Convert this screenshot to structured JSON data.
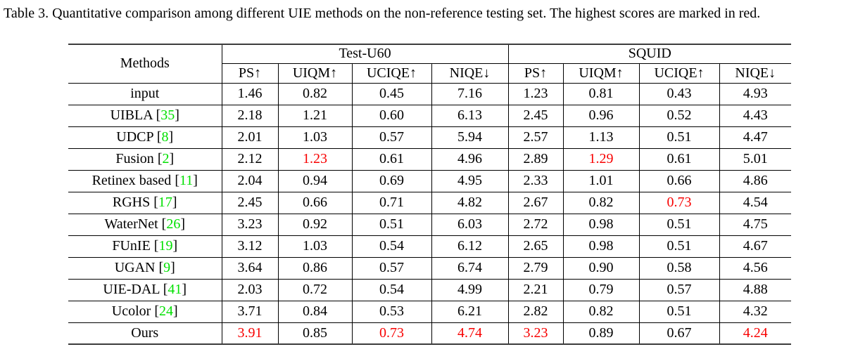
{
  "caption": "Table 3. Quantitative comparison among different UIE methods on the non-reference testing set. The highest scores are marked in red.",
  "colors": {
    "highlight_red": "#f80000",
    "citation_green": "#00e000"
  },
  "table": {
    "methods_header": "Methods",
    "groups": [
      {
        "label": "Test-U60",
        "columns": [
          "PS↑",
          "UIQM↑",
          "UCIQE↑",
          "NIQE↓"
        ]
      },
      {
        "label": "SQUID",
        "columns": [
          "PS↑",
          "UIQM↑",
          "UCIQE↑",
          "NIQE↓"
        ]
      }
    ],
    "rows": [
      {
        "method": "input",
        "cite": null,
        "values": [
          "1.46",
          "0.82",
          "0.45",
          "7.16",
          "1.23",
          "0.81",
          "0.43",
          "4.93"
        ],
        "red": []
      },
      {
        "method": "UIBLA",
        "cite": "35",
        "values": [
          "2.18",
          "1.21",
          "0.60",
          "6.13",
          "2.45",
          "0.96",
          "0.52",
          "4.43"
        ],
        "red": []
      },
      {
        "method": "UDCP",
        "cite": "8",
        "values": [
          "2.01",
          "1.03",
          "0.57",
          "5.94",
          "2.57",
          "1.13",
          "0.51",
          "4.47"
        ],
        "red": []
      },
      {
        "method": "Fusion",
        "cite": "2",
        "values": [
          "2.12",
          "1.23",
          "0.61",
          "4.96",
          "2.89",
          "1.29",
          "0.61",
          "5.01"
        ],
        "red": [
          1,
          5
        ]
      },
      {
        "method": "Retinex based",
        "cite": "11",
        "values": [
          "2.04",
          "0.94",
          "0.69",
          "4.95",
          "2.33",
          "1.01",
          "0.66",
          "4.86"
        ],
        "red": []
      },
      {
        "method": "RGHS",
        "cite": "17",
        "values": [
          "2.45",
          "0.66",
          "0.71",
          "4.82",
          "2.67",
          "0.82",
          "0.73",
          "4.54"
        ],
        "red": [
          6
        ]
      },
      {
        "method": "WaterNet",
        "cite": "26",
        "values": [
          "3.23",
          "0.92",
          "0.51",
          "6.03",
          "2.72",
          "0.98",
          "0.51",
          "4.75"
        ],
        "red": []
      },
      {
        "method": "FUnIE",
        "cite": "19",
        "values": [
          "3.12",
          "1.03",
          "0.54",
          "6.12",
          "2.65",
          "0.98",
          "0.51",
          "4.67"
        ],
        "red": []
      },
      {
        "method": "UGAN",
        "cite": "9",
        "values": [
          "3.64",
          "0.86",
          "0.57",
          "6.74",
          "2.79",
          "0.90",
          "0.58",
          "4.56"
        ],
        "red": []
      },
      {
        "method": "UIE-DAL",
        "cite": "41",
        "values": [
          "2.03",
          "0.72",
          "0.54",
          "4.99",
          "2.21",
          "0.79",
          "0.57",
          "4.88"
        ],
        "red": []
      },
      {
        "method": "Ucolor",
        "cite": "24",
        "values": [
          "3.71",
          "0.84",
          "0.53",
          "6.21",
          "2.82",
          "0.82",
          "0.51",
          "4.32"
        ],
        "red": []
      },
      {
        "method": "Ours",
        "cite": null,
        "values": [
          "3.91",
          "0.85",
          "0.73",
          "4.74",
          "3.23",
          "0.89",
          "0.67",
          "4.24"
        ],
        "red": [
          0,
          2,
          3,
          4,
          7
        ]
      }
    ]
  }
}
